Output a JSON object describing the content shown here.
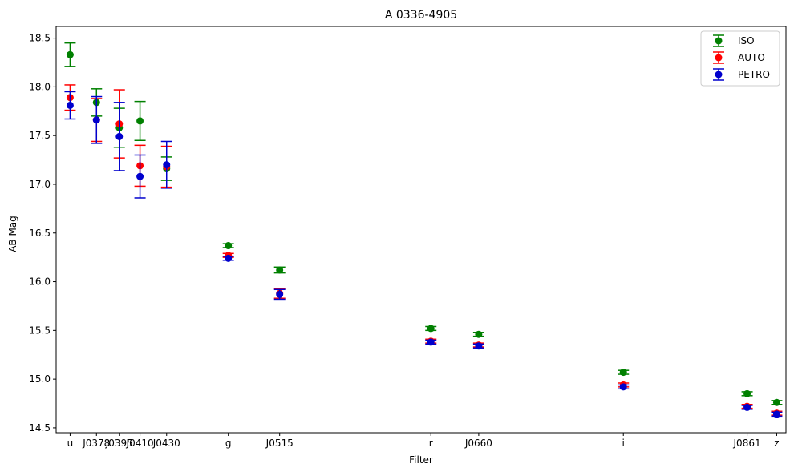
{
  "chart_data": {
    "type": "scatter",
    "title": "A 0336-4905",
    "xlabel": "Filter",
    "ylabel": "AB Mag",
    "categories": [
      "u",
      "J0378",
      "J0395",
      "J0410",
      "J0430",
      "g",
      "J0515",
      "r",
      "J0660",
      "i",
      "J0861",
      "z"
    ],
    "x": [
      3574,
      3770,
      3940,
      4094,
      4292,
      4751,
      5133,
      6258,
      6614,
      7690,
      8611,
      8831
    ],
    "xlim": [
      3470,
      8900
    ],
    "ylim": [
      14.45,
      18.62
    ],
    "yticks": [
      14.5,
      15.0,
      15.5,
      16.0,
      16.5,
      17.0,
      17.5,
      18.0,
      18.5
    ],
    "grid": false,
    "legend_position": "top-right",
    "series": [
      {
        "name": "ISO",
        "color": "#008000",
        "values": [
          18.33,
          17.84,
          17.58,
          17.65,
          17.16,
          16.37,
          16.12,
          15.52,
          15.46,
          15.07,
          14.85,
          14.76
        ],
        "errors": [
          0.12,
          0.14,
          0.2,
          0.2,
          0.12,
          0.02,
          0.03,
          0.02,
          0.02,
          0.02,
          0.02,
          0.02
        ]
      },
      {
        "name": "AUTO",
        "color": "#ff0000",
        "values": [
          17.89,
          17.66,
          17.62,
          17.19,
          17.18,
          16.27,
          15.88,
          15.39,
          15.35,
          14.94,
          14.72,
          14.65
        ],
        "errors": [
          0.13,
          0.22,
          0.35,
          0.21,
          0.21,
          0.02,
          0.05,
          0.02,
          0.02,
          0.02,
          0.02,
          0.02
        ]
      },
      {
        "name": "PETRO",
        "color": "#0000cd",
        "values": [
          17.81,
          17.66,
          17.49,
          17.08,
          17.2,
          16.24,
          15.87,
          15.38,
          15.34,
          14.92,
          14.71,
          14.64
        ],
        "errors": [
          0.14,
          0.24,
          0.35,
          0.22,
          0.24,
          0.02,
          0.05,
          0.02,
          0.02,
          0.02,
          0.02,
          0.02
        ]
      }
    ]
  }
}
